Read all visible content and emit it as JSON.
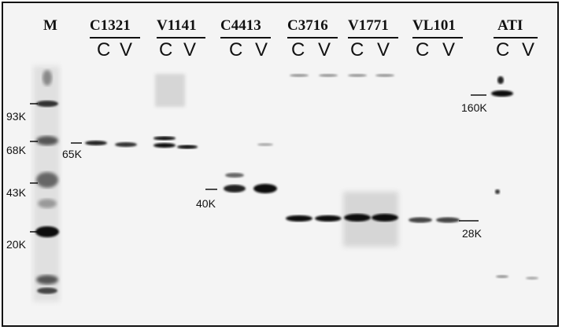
{
  "marker_lane": {
    "label": "M"
  },
  "samples": [
    {
      "name": "C1321",
      "lanes": [
        "C",
        "V"
      ]
    },
    {
      "name": "V1141",
      "lanes": [
        "C",
        "V"
      ]
    },
    {
      "name": "C4413",
      "lanes": [
        "C",
        "V"
      ]
    },
    {
      "name": "C3716",
      "lanes": [
        "C",
        "V"
      ]
    },
    {
      "name": "V1771",
      "lanes": [
        "C",
        "V"
      ]
    },
    {
      "name": "VL101",
      "lanes": [
        "C",
        "V"
      ]
    },
    {
      "name": "ATI",
      "lanes": [
        "C",
        "V"
      ]
    }
  ],
  "ladder_labels": [
    "93K",
    "68K",
    "43K",
    "20K"
  ],
  "band_labels": [
    "65K",
    "40K",
    "28K",
    "160K"
  ],
  "colors": {
    "background": "#f4f4f4",
    "band": "#111111",
    "text": "#111111"
  }
}
